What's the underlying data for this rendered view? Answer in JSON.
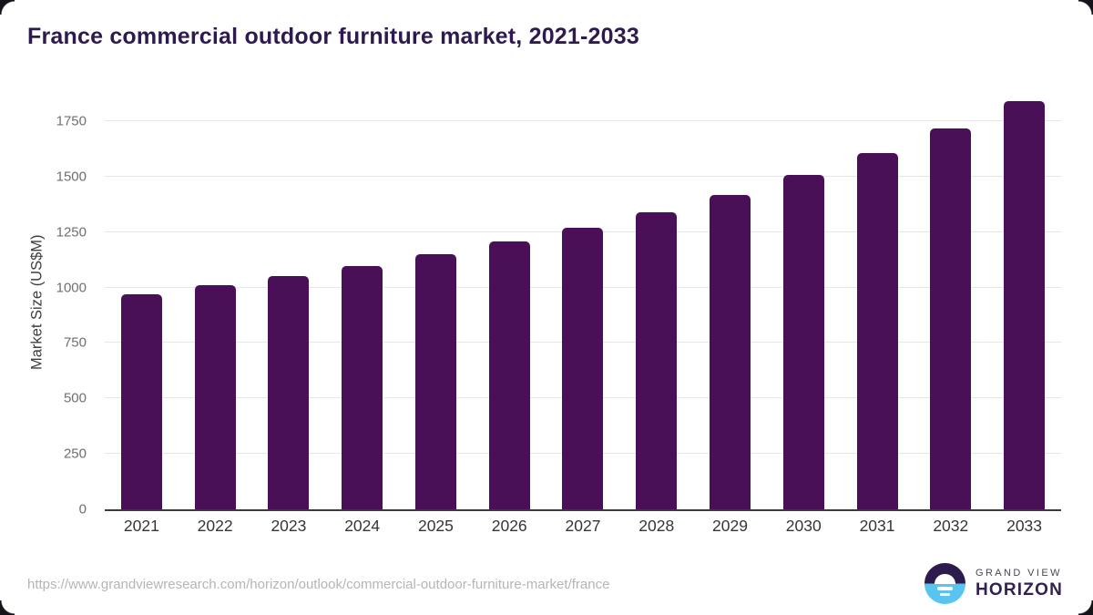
{
  "chart_data": {
    "type": "bar",
    "title": "France commercial outdoor furniture market, 2021-2033",
    "categories": [
      "2021",
      "2022",
      "2023",
      "2024",
      "2025",
      "2026",
      "2027",
      "2028",
      "2029",
      "2030",
      "2031",
      "2032",
      "2033"
    ],
    "values": [
      970,
      1009,
      1050,
      1098,
      1152,
      1207,
      1270,
      1341,
      1419,
      1506,
      1605,
      1717,
      1840
    ],
    "xlabel": "",
    "ylabel": "Market Size (US$M)",
    "ylim": [
      0,
      1869
    ],
    "yticks": [
      0,
      250,
      500,
      750,
      1000,
      1250,
      1500,
      1750
    ],
    "grid": "horizontal",
    "legend": "none",
    "bar_color": "#4a1057"
  },
  "colors": {
    "title_text": "#2e1a4e",
    "bar": "#4a1057",
    "gridline": "#e7e7e7",
    "axis_line": "#3a3a40",
    "y_tick_text": "#6f6f6f",
    "x_tick_text": "#353535",
    "url_text": "#b5b5b5",
    "logo_purple": "#2d1b4e",
    "logo_blue": "#58c4ef"
  },
  "footer": {
    "source_url": "https://www.grandviewresearch.com/horizon/outlook/commercial-outdoor-furniture-market/france",
    "logo": {
      "top_text": "GRAND VIEW",
      "bottom_text": "HORIZON"
    }
  }
}
